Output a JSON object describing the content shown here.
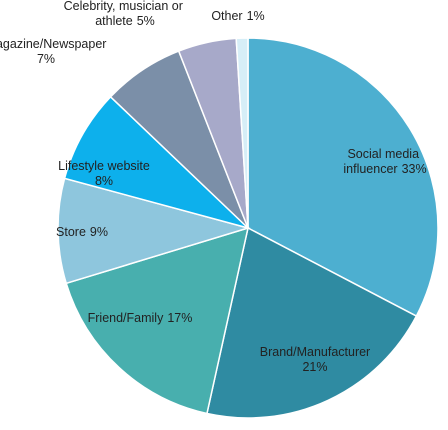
{
  "chart_data": {
    "type": "pie",
    "categories": [
      "Social media influencer",
      "Brand/Manufacturer",
      "Friend/Family",
      "Store",
      "Lifestyle website",
      "Magazine/Newspaper",
      "Celebrity, musician or athlete",
      "Other"
    ],
    "values": [
      33,
      21,
      17,
      9,
      8,
      7,
      5,
      1
    ],
    "value_labels": [
      "33%",
      "21%",
      "17%",
      "9%",
      "8%",
      "7%",
      "5%",
      "1%"
    ],
    "colors": [
      "#4dafd0",
      "#2f8ba2",
      "#48afae",
      "#8ec6dd",
      "#0db0ec",
      "#7b8fa8",
      "#a7a9c9",
      "#d6eef7"
    ]
  }
}
